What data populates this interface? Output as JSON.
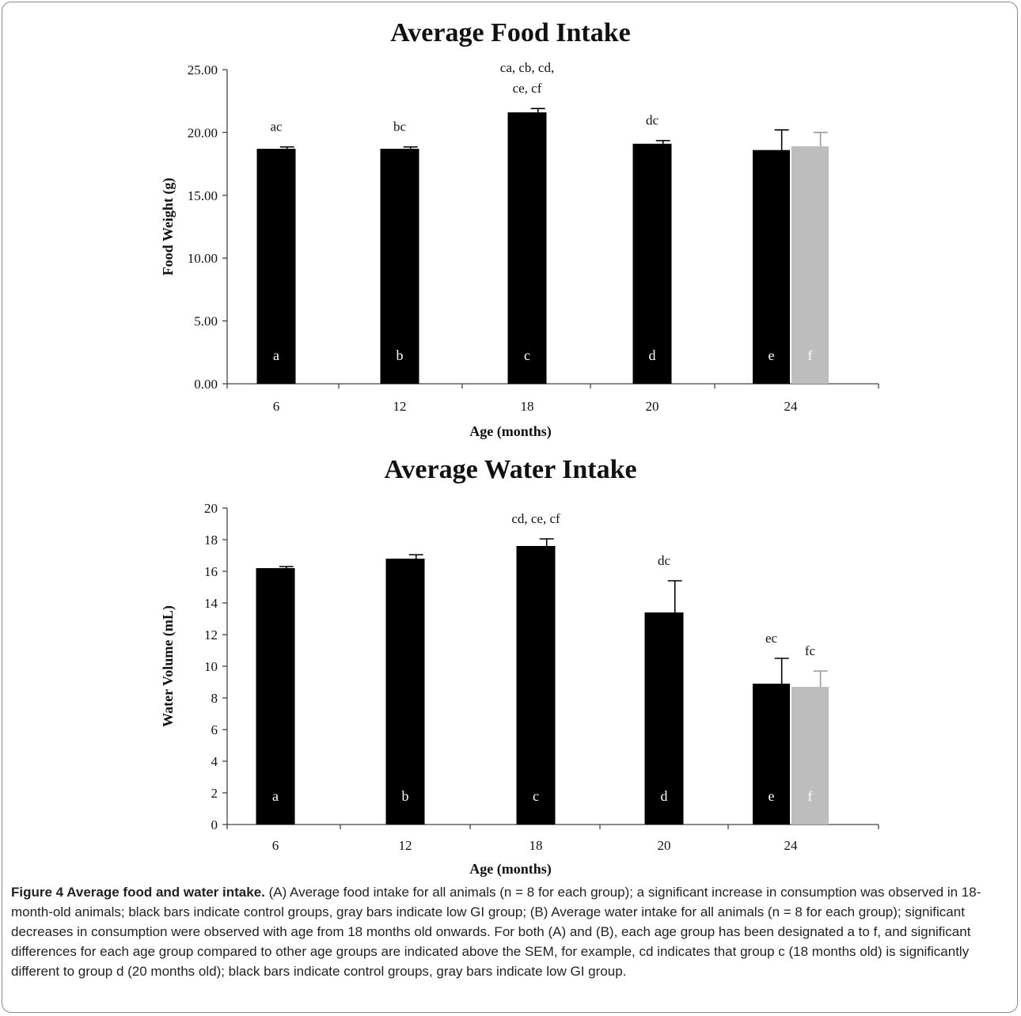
{
  "chart_data": [
    {
      "type": "bar",
      "title": "Average Food Intake",
      "xlabel": "Age (months)",
      "ylabel": "Food Weight (g)",
      "ylim": [
        0,
        25
      ],
      "yticks": [
        "0.00",
        "5.00",
        "10.00",
        "15.00",
        "20.00",
        "25.00"
      ],
      "categories": [
        "6",
        "12",
        "18",
        "20",
        "24"
      ],
      "series": [
        {
          "color": "#000000",
          "values": [
            18.7,
            18.7,
            21.6,
            19.1,
            18.6
          ],
          "errors": [
            0.15,
            0.15,
            0.3,
            0.25,
            1.6
          ],
          "letters": [
            "a",
            "b",
            "c",
            "d",
            "e"
          ]
        },
        {
          "color": "#bdbdbd",
          "values": [
            null,
            null,
            null,
            null,
            18.9
          ],
          "errors": [
            null,
            null,
            null,
            null,
            1.1
          ],
          "letters": [
            null,
            null,
            null,
            null,
            "f"
          ]
        }
      ],
      "annotations": [
        {
          "category": "6",
          "series": 0,
          "lines": [
            "ac"
          ]
        },
        {
          "category": "12",
          "series": 0,
          "lines": [
            "bc"
          ]
        },
        {
          "category": "18",
          "series": 0,
          "lines": [
            "ca, cb, cd,",
            "ce, cf"
          ]
        },
        {
          "category": "20",
          "series": 0,
          "lines": [
            "dc"
          ]
        }
      ]
    },
    {
      "type": "bar",
      "title": "Average Water Intake",
      "xlabel": "Age (months)",
      "ylabel": "Water Volume (mL)",
      "ylim": [
        0,
        20
      ],
      "yticks": [
        "0",
        "2",
        "4",
        "6",
        "8",
        "10",
        "12",
        "14",
        "16",
        "18",
        "20"
      ],
      "categories": [
        "6",
        "12",
        "18",
        "20",
        "24"
      ],
      "series": [
        {
          "color": "#000000",
          "values": [
            16.2,
            16.8,
            17.6,
            13.4,
            8.9
          ],
          "errors": [
            0.1,
            0.25,
            0.45,
            2.0,
            1.6
          ],
          "letters": [
            "a",
            "b",
            "c",
            "d",
            "e"
          ]
        },
        {
          "color": "#bdbdbd",
          "values": [
            null,
            null,
            null,
            null,
            8.7
          ],
          "errors": [
            null,
            null,
            null,
            null,
            1.0
          ],
          "letters": [
            null,
            null,
            null,
            null,
            "f"
          ]
        }
      ],
      "annotations": [
        {
          "category": "18",
          "series": 0,
          "lines": [
            "cd, ce, cf"
          ]
        },
        {
          "category": "20",
          "series": 0,
          "lines": [
            "dc"
          ]
        },
        {
          "category": "24",
          "series": 0,
          "lines": [
            "ec"
          ]
        },
        {
          "category": "24",
          "series": 1,
          "lines": [
            "fc"
          ]
        }
      ]
    }
  ],
  "caption": {
    "title": "Figure 4 Average food and water intake.",
    "body": " (A) Average food intake for all animals (n = 8 for each group); a significant increase in consumption was observed in 18-month-old animals; black bars indicate control groups, gray bars indicate low GI group; (B) Average water intake for all animals (n = 8 for each group); significant decreases in consumption were observed with age from 18 months old onwards. For both (A) and (B), each age group has been designated a to f, and significant differences for each age group compared to other age groups are indicated above the SEM, for example, cd indicates that group c (18 months old) is significantly different to group d (20 months old); black bars indicate control groups, gray bars indicate low GI group."
  }
}
